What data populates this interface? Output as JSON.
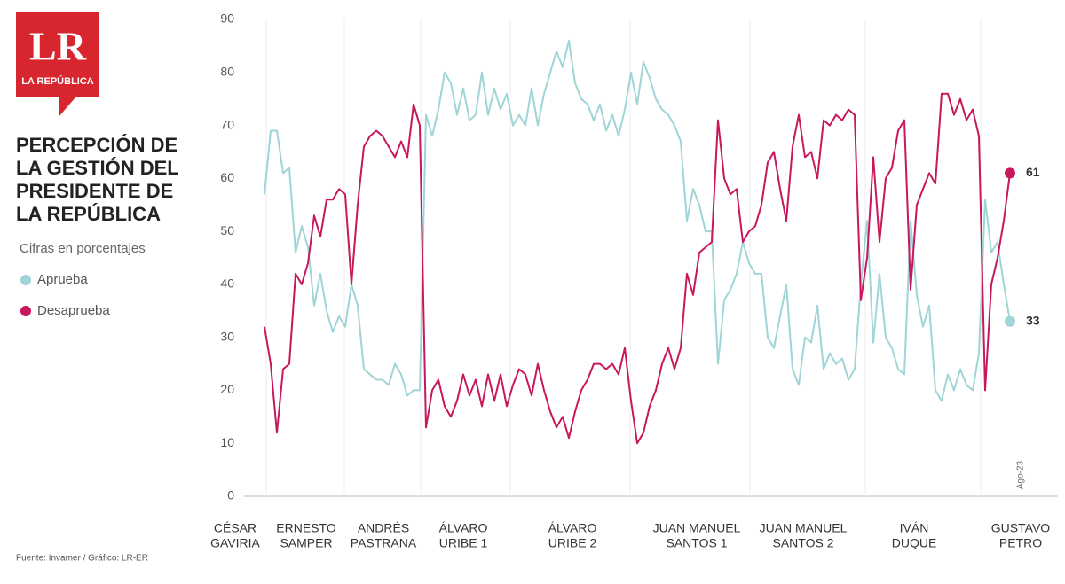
{
  "logo": {
    "mark": "LR",
    "name": "LA REPÚBLICA"
  },
  "chart_data": {
    "type": "line",
    "title": [
      "PERCEPCIÓN DE",
      "LA GESTIÓN DEL",
      "PRESIDENTE DE",
      "LA REPÚBLICA"
    ],
    "subtitle": "Cifras en porcentajes",
    "source": "Fuente: Invamer / Gráfico: LR-ER",
    "annotation": "Ago-23",
    "periods": [
      [
        "CÉSAR",
        "GAVIRIA"
      ],
      [
        "ERNESTO",
        "SAMPER"
      ],
      [
        "ANDRÉS",
        "PASTRANA"
      ],
      [
        "ÁLVARO",
        "URIBE 1"
      ],
      [
        "ÁLVARO",
        "URIBE 2"
      ],
      [
        "JUAN MANUEL",
        "SANTOS 1"
      ],
      [
        "JUAN MANUEL",
        "SANTOS 2"
      ],
      [
        "IVÁN",
        "DUQUE"
      ],
      [
        "GUSTAVO",
        "PETRO"
      ]
    ],
    "ylim": [
      0,
      90
    ],
    "yticks": [
      0,
      10,
      20,
      30,
      40,
      50,
      60,
      70,
      80,
      90
    ],
    "grid": false,
    "series": [
      {
        "name": "Aprueba",
        "color": "#9fd5d6",
        "values": [
          57,
          69,
          69,
          61,
          62,
          46,
          51,
          47,
          36,
          42,
          35,
          31,
          34,
          32,
          40,
          36,
          24,
          23,
          22,
          22,
          21,
          25,
          23,
          19,
          20,
          20,
          72,
          68,
          73,
          80,
          78,
          72,
          77,
          71,
          72,
          80,
          72,
          77,
          73,
          76,
          70,
          72,
          70,
          77,
          70,
          76,
          80,
          84,
          81,
          86,
          78,
          75,
          74,
          71,
          74,
          69,
          72,
          68,
          73,
          80,
          74,
          82,
          79,
          75,
          73,
          72,
          70,
          67,
          52,
          58,
          55,
          50,
          50,
          25,
          37,
          39,
          42,
          48,
          44,
          42,
          42,
          30,
          28,
          34,
          40,
          24,
          21,
          30,
          29,
          36,
          24,
          27,
          25,
          26,
          22,
          24,
          40,
          52,
          29,
          42,
          30,
          28,
          24,
          23,
          52,
          38,
          32,
          36,
          20,
          18,
          23,
          20,
          24,
          21,
          20,
          27,
          56,
          46,
          48,
          40,
          33
        ]
      },
      {
        "name": "Desaprueba",
        "color": "#c8175d",
        "values": [
          32,
          25,
          12,
          24,
          25,
          42,
          40,
          44,
          53,
          49,
          56,
          56,
          58,
          57,
          40,
          55,
          66,
          68,
          69,
          68,
          66,
          64,
          67,
          64,
          74,
          70,
          13,
          20,
          22,
          17,
          15,
          18,
          23,
          19,
          22,
          17,
          23,
          18,
          23,
          17,
          21,
          24,
          23,
          19,
          25,
          20,
          16,
          13,
          15,
          11,
          16,
          20,
          22,
          25,
          25,
          24,
          25,
          23,
          28,
          18,
          10,
          12,
          17,
          20,
          25,
          28,
          24,
          28,
          42,
          38,
          46,
          47,
          48,
          71,
          60,
          57,
          58,
          48,
          50,
          51,
          55,
          63,
          65,
          58,
          52,
          66,
          72,
          64,
          65,
          60,
          71,
          70,
          72,
          71,
          73,
          72,
          37,
          45,
          64,
          48,
          60,
          62,
          69,
          71,
          39,
          55,
          58,
          61,
          59,
          76,
          76,
          72,
          75,
          71,
          73,
          68,
          20,
          40,
          45,
          52,
          61
        ]
      }
    ]
  }
}
